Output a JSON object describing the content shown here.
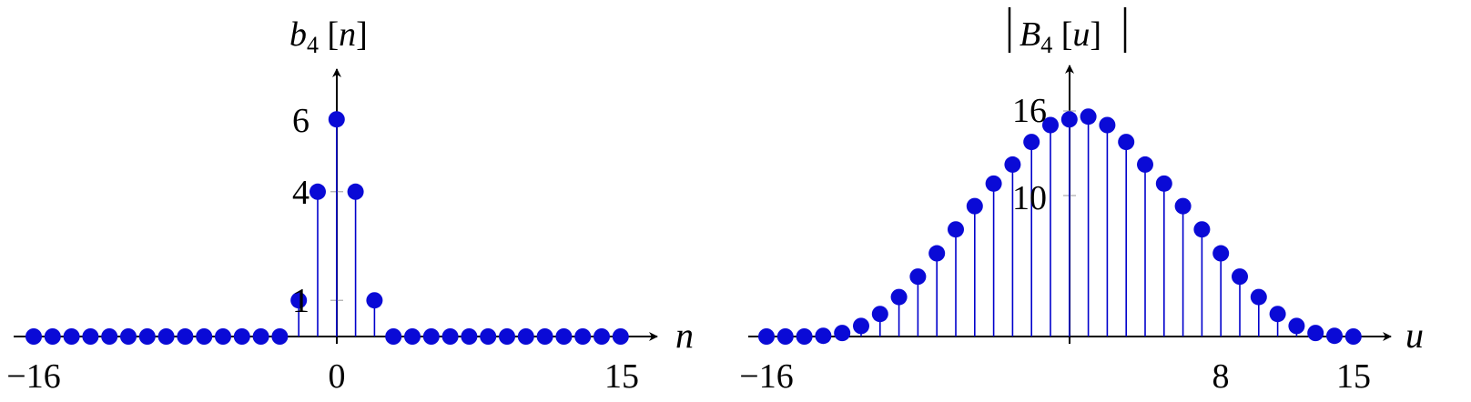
{
  "colors": {
    "stem": "#0000cc",
    "marker": "#0a0ad6",
    "axis": "#000000"
  },
  "chart_data": [
    {
      "type": "stem",
      "title_parts": {
        "base": "b",
        "sub": "4",
        "arg": "n"
      },
      "xlabel": "n",
      "ylabel": "",
      "x_tick_labels": [
        "−16",
        "0",
        "15"
      ],
      "y_tick_labels": [
        "1",
        "4",
        "6"
      ],
      "x_ticks": [
        -16,
        0,
        15
      ],
      "y_ticks": [
        1,
        4,
        6
      ],
      "xlim": [
        -17.5,
        17.5
      ],
      "ylim": [
        0,
        8
      ],
      "x": [
        -16,
        -15,
        -14,
        -13,
        -12,
        -11,
        -10,
        -9,
        -8,
        -7,
        -6,
        -5,
        -4,
        -3,
        -2,
        -1,
        0,
        1,
        2,
        3,
        4,
        5,
        6,
        7,
        8,
        9,
        10,
        11,
        12,
        13,
        14,
        15
      ],
      "y": [
        0,
        0,
        0,
        0,
        0,
        0,
        0,
        0,
        0,
        0,
        0,
        0,
        0,
        0,
        1,
        4,
        6,
        4,
        1,
        0,
        0,
        0,
        0,
        0,
        0,
        0,
        0,
        0,
        0,
        0,
        0,
        0
      ]
    },
    {
      "type": "stem",
      "title_parts": {
        "base": "B",
        "sub": "4",
        "arg": "u"
      },
      "xlabel": "u",
      "ylabel": "",
      "x_tick_labels": [
        "−16",
        "8",
        "15"
      ],
      "y_tick_labels": [
        "10",
        "16"
      ],
      "x_ticks": [
        -16,
        8,
        15
      ],
      "y_ticks": [
        10,
        16
      ],
      "xlim": [
        -17.5,
        17.5
      ],
      "ylim": [
        0,
        20
      ],
      "x": [
        -16,
        -15,
        -14,
        -13,
        -12,
        -11,
        -10,
        -9,
        -8,
        -7,
        -6,
        -5,
        -4,
        -3,
        -2,
        -1,
        0,
        1,
        2,
        3,
        4,
        5,
        6,
        7,
        8,
        9,
        10,
        11,
        12,
        13,
        14,
        15
      ],
      "y": [
        0,
        0,
        0,
        0.05,
        0.25,
        0.75,
        1.6,
        2.8,
        4.25,
        5.9,
        7.6,
        9.25,
        10.85,
        12.2,
        13.8,
        15.0,
        15.4,
        15.6,
        15.0,
        13.8,
        12.2,
        10.85,
        9.25,
        7.6,
        5.9,
        4.25,
        2.8,
        1.6,
        0.75,
        0.25,
        0.05,
        0
      ]
    }
  ]
}
